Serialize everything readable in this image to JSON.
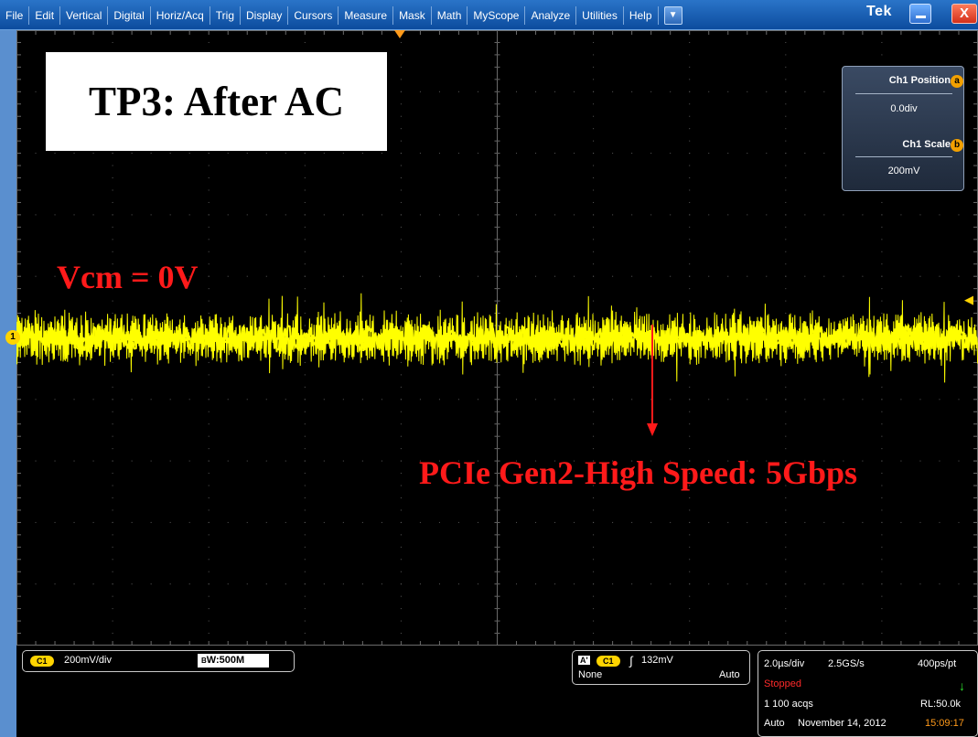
{
  "menubar": {
    "items": [
      "File",
      "Edit",
      "Vertical",
      "Digital",
      "Horiz/Acq",
      "Trig",
      "Display",
      "Cursors",
      "Measure",
      "Mask",
      "Math",
      "MyScope",
      "Analyze",
      "Utilities",
      "Help"
    ],
    "dropdown_icon": "chevron-down-icon",
    "brand": "Tek",
    "close_glyph": "X"
  },
  "overlay": {
    "title": "TP3: After AC",
    "vcm_label": "Vcm = 0V",
    "speed_label": "PCIe Gen2-High Speed: 5Gbps"
  },
  "channel_marker": "1",
  "knob_panel": {
    "position_label": "Ch1 Position",
    "position_badge": "a",
    "position_value": "0.0div",
    "scale_label": "Ch1 Scale",
    "scale_badge": "b",
    "scale_value": "200mV"
  },
  "status": {
    "channel_pill": "C1",
    "vertical_scale": "200mV/div",
    "bandwidth_prefix": "B",
    "bandwidth": "W:500M",
    "trigger_a": "A'",
    "trigger_channel": "C1",
    "trigger_level": "132mV",
    "trigger_coupling": "None",
    "trigger_mode": "Auto",
    "time_div": "2.0µs/div",
    "sample_rate": "2.5GS/s",
    "resolution": "400ps/pt",
    "run_state": "Stopped",
    "acquisitions": "1 100 acqs",
    "record_length": "RL:50.0k",
    "acq_mode": "Auto",
    "date": "November 14, 2012",
    "time": "15:09:17"
  },
  "colors": {
    "waveform": "#ffff00",
    "annotation": "#ff1a1a",
    "stopped": "#ff2a2a",
    "time": "#ff9a1a",
    "menubar": "#1a5db3"
  }
}
